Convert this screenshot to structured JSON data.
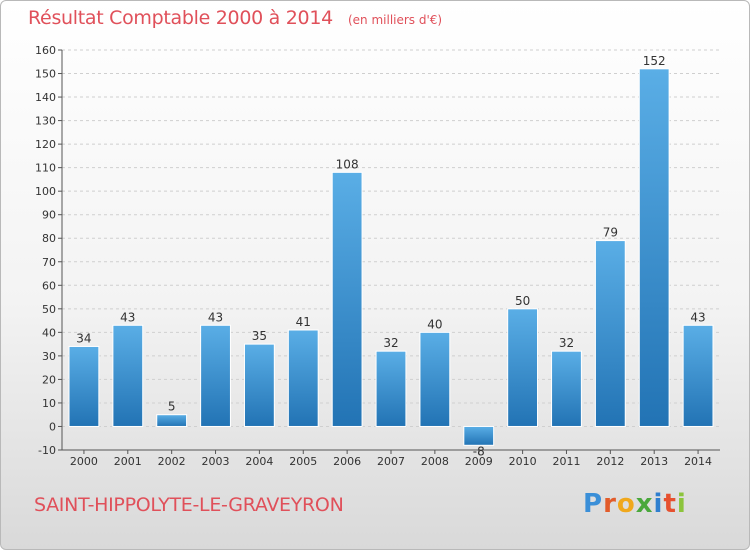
{
  "header": {
    "title": "Résultat Comptable 2000 à 2014",
    "unit_note": "(en milliers d'€)"
  },
  "footer": {
    "commune": "SAINT-HIPPOLYTE-LE-GRAVEYRON",
    "logo_text": "Proxiti"
  },
  "colors": {
    "title": "#e0505a",
    "bar_light": "#5aaee6",
    "bar_dark": "#2273b4",
    "grid": "#cfcfcf"
  },
  "chart_data": {
    "type": "bar",
    "title": "Résultat Comptable 2000 à 2014",
    "subtitle": "(en milliers d'€)",
    "xlabel": "",
    "ylabel": "",
    "categories": [
      "2000",
      "2001",
      "2002",
      "2003",
      "2004",
      "2005",
      "2006",
      "2007",
      "2008",
      "2009",
      "2010",
      "2011",
      "2012",
      "2013",
      "2014"
    ],
    "values": [
      34,
      43,
      5,
      43,
      35,
      41,
      108,
      32,
      40,
      -8,
      50,
      32,
      79,
      152,
      43
    ],
    "ylim": [
      -10,
      160
    ],
    "yticks": [
      -10,
      0,
      10,
      20,
      30,
      40,
      50,
      60,
      70,
      80,
      90,
      100,
      110,
      120,
      130,
      140,
      150,
      160
    ],
    "grid": true,
    "legend": "none"
  }
}
